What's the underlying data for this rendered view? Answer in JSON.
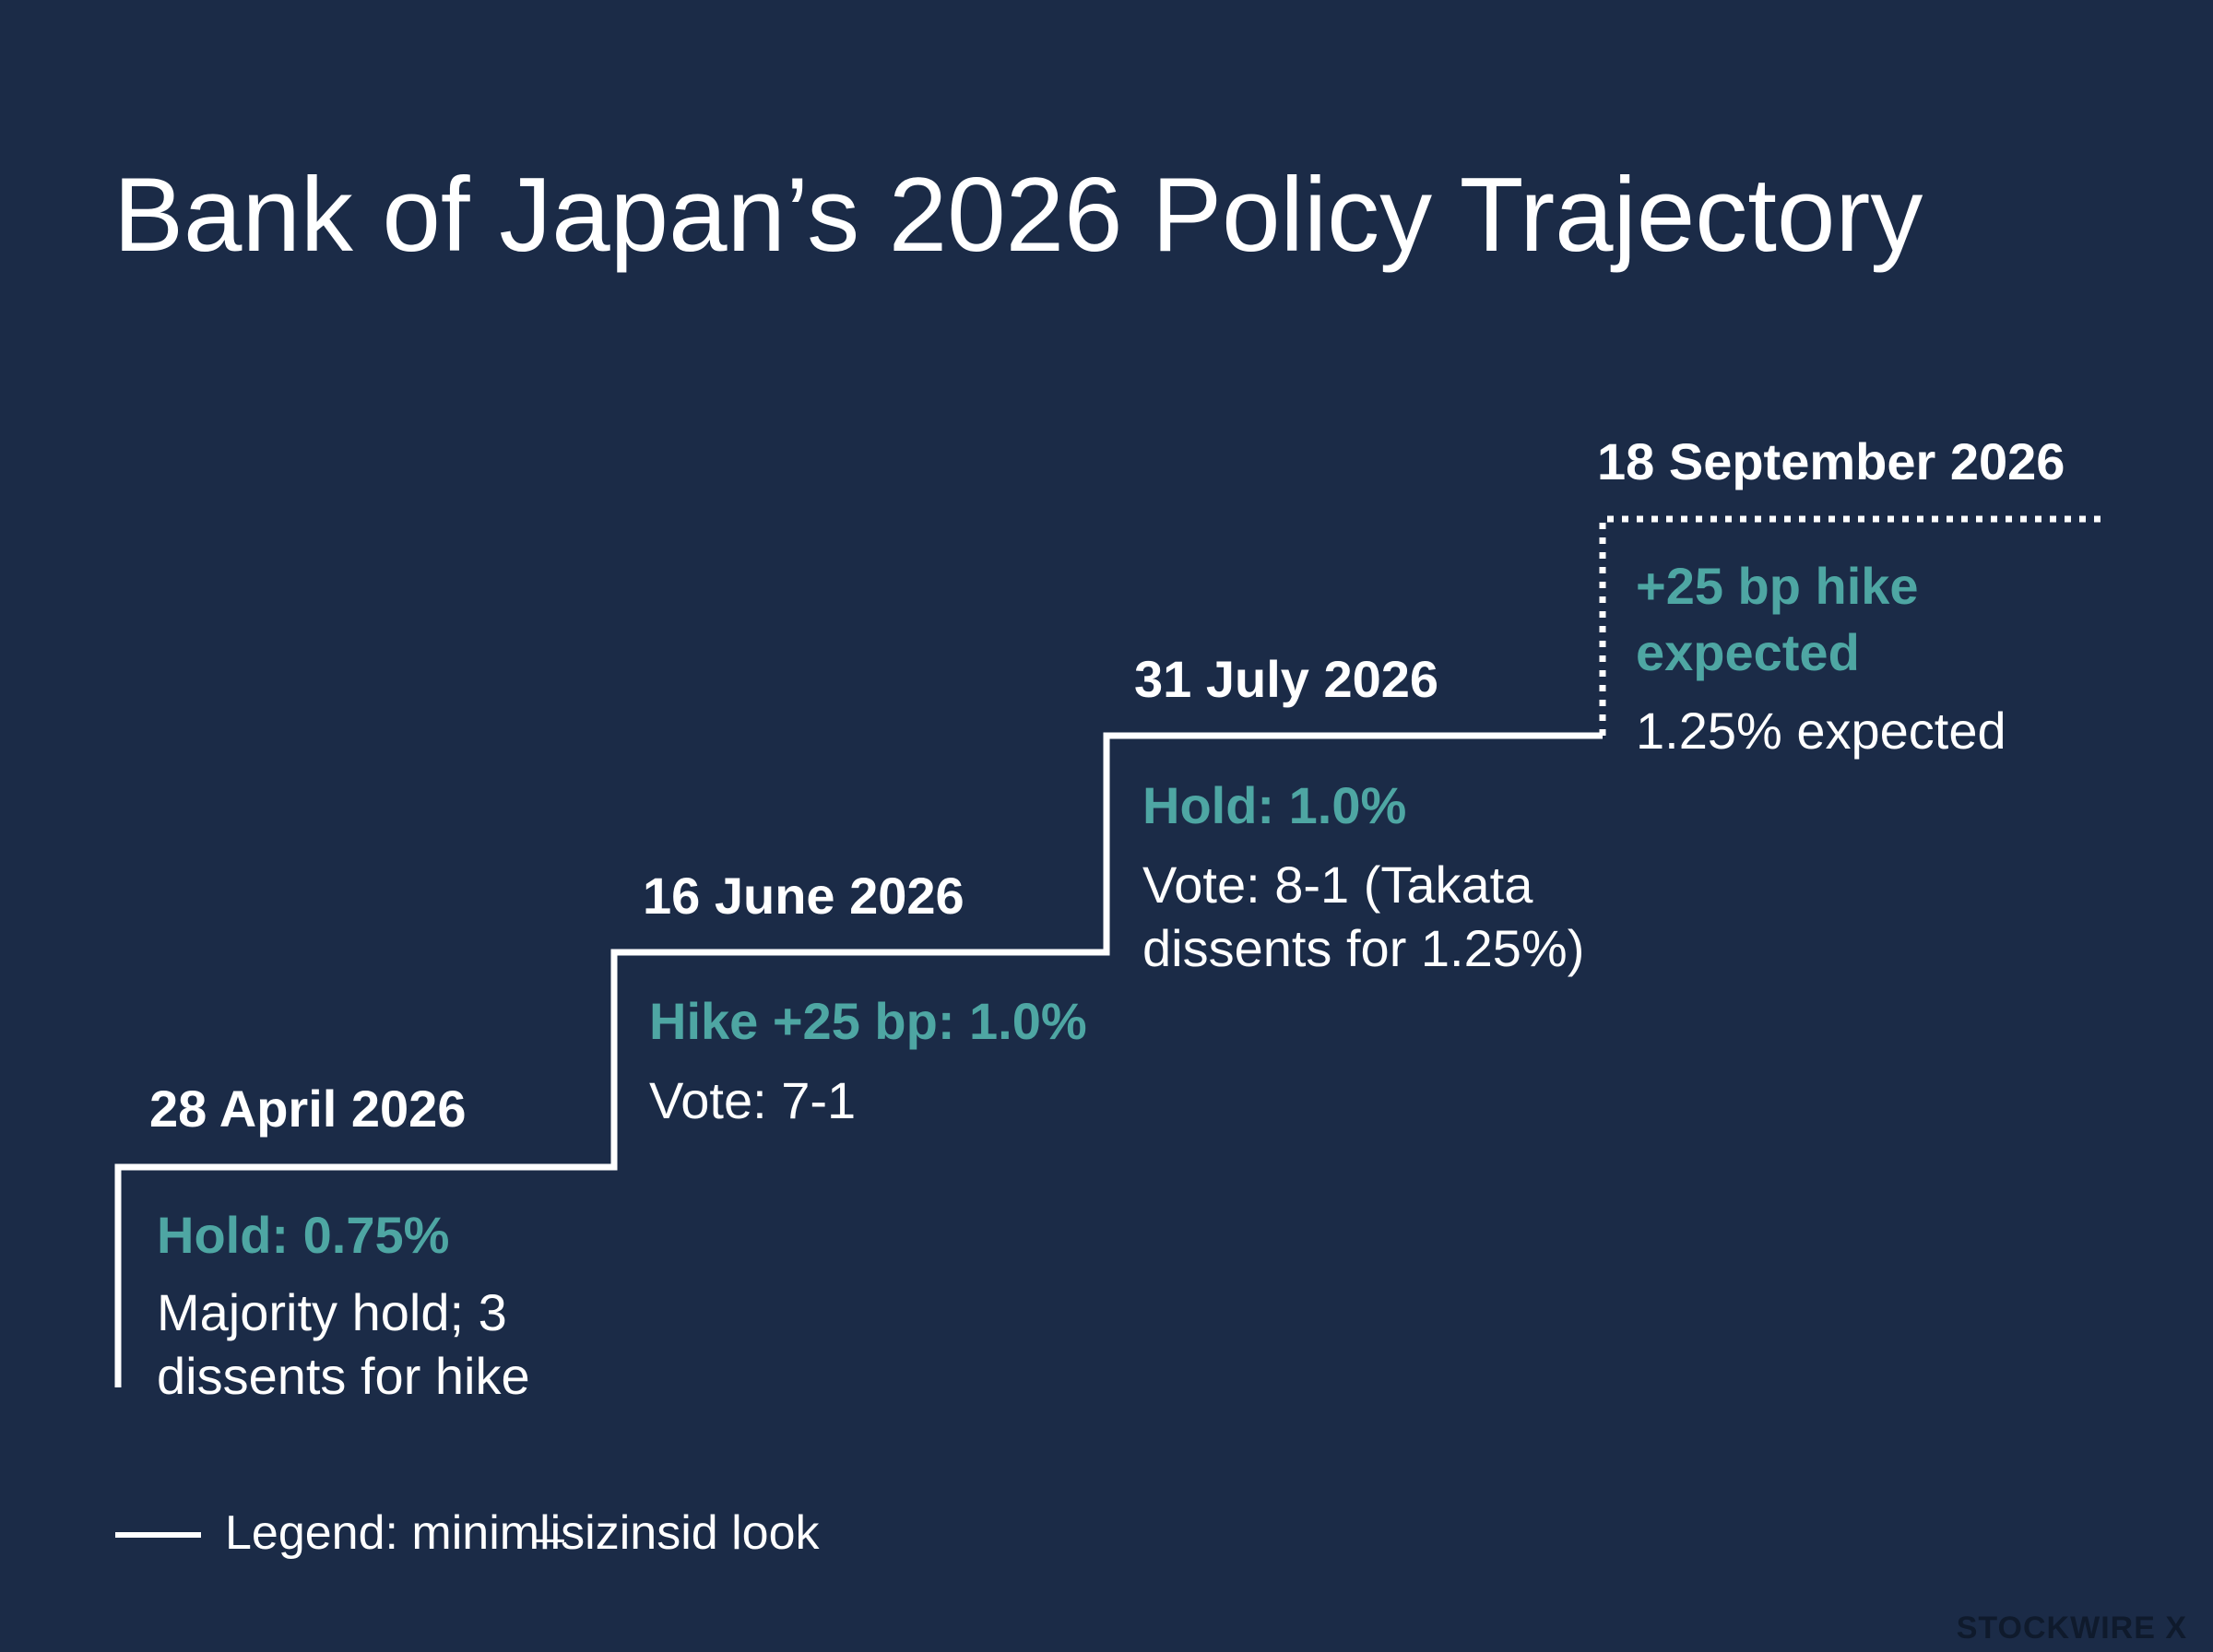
{
  "title": "Bank of Japan’s 2026 Policy Trajectory",
  "steps": [
    {
      "date": "28 April 2026",
      "headline": "Hold: 0.75%",
      "note": "Majority hold; 3 dissents for hike",
      "rate_pct": 0.75,
      "status": "actual"
    },
    {
      "date": "16 June 2026",
      "headline": "Hike +25 bp: 1.0%",
      "note": "Vote: 7-1",
      "rate_pct": 1.0,
      "status": "actual"
    },
    {
      "date": "31 July 2026",
      "headline": "Hold: 1.0%",
      "note": "Vote: 8-1 (Takata dissents for 1.25%)",
      "rate_pct": 1.0,
      "status": "actual"
    },
    {
      "date": "18 September 2026",
      "headline": "+25 bp hike expected",
      "note": "1.25% expected",
      "rate_pct": 1.25,
      "status": "expected"
    }
  ],
  "legend": "Legend: miniml̶isizinsid look",
  "brand": "STOCKWIRE X",
  "colors": {
    "background": "#1b2b47",
    "accent": "#4ea6a3",
    "text": "#ffffff"
  }
}
